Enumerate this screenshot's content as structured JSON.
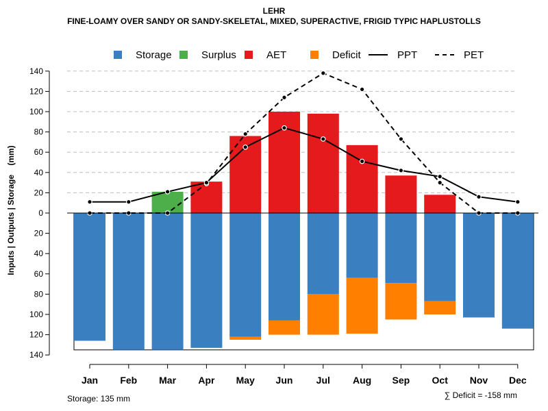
{
  "header": {
    "title": "LEHR",
    "subtitle": "FINE-LOAMY OVER SANDY OR SANDY-SKELETAL, MIXED, SUPERACTIVE, FRIGID TYPIC HAPLUSTOLLS"
  },
  "legend": {
    "storage": "Storage",
    "surplus": "Surplus",
    "aet": "AET",
    "deficit": "Deficit",
    "ppt": "PPT",
    "pet": "PET"
  },
  "colors": {
    "storage": "#3a7fbf",
    "surplus": "#4daf4a",
    "aet": "#e41a1c",
    "deficit": "#ff7f00",
    "ppt": "#000000",
    "pet": "#000000"
  },
  "footer": {
    "storage_text": "Storage: 135 mm",
    "deficit_text": "∑ Deficit = -158 mm"
  },
  "chart_data": {
    "type": "bar",
    "title": "LEHR",
    "ylabel": "Inputs | Outputs | Storage    (mm)",
    "xlabel": "",
    "ylim": [
      -140,
      140
    ],
    "yticks": [
      140,
      120,
      100,
      80,
      60,
      40,
      20,
      0,
      -20,
      -40,
      -60,
      -80,
      -100,
      -120,
      -140
    ],
    "ytick_labels": [
      "140",
      "120",
      "100",
      "80",
      "60",
      "40",
      "20",
      "0",
      "20",
      "40",
      "60",
      "80",
      "100",
      "120",
      "140"
    ],
    "categories": [
      "Jan",
      "Feb",
      "Mar",
      "Apr",
      "May",
      "Jun",
      "Jul",
      "Aug",
      "Sep",
      "Oct",
      "Nov",
      "Dec"
    ],
    "grid": true,
    "storage_capacity": 135,
    "series": [
      {
        "name": "Storage",
        "values": [
          -126,
          -135,
          -135,
          -133,
          -122,
          -106,
          -80,
          -64,
          -69,
          -87,
          -103,
          -114
        ]
      },
      {
        "name": "Surplus",
        "values": [
          0,
          0,
          21,
          0,
          0,
          0,
          0,
          0,
          0,
          0,
          0,
          0
        ]
      },
      {
        "name": "AET",
        "values": [
          0,
          0,
          0,
          31,
          76,
          100,
          98,
          67,
          37,
          18,
          0,
          0
        ]
      },
      {
        "name": "Deficit",
        "values": [
          0,
          0,
          0,
          0,
          -3,
          -14,
          -40,
          -55,
          -36,
          -13,
          0,
          0
        ]
      },
      {
        "name": "PPT",
        "values": [
          11,
          11,
          21,
          30,
          65,
          84,
          73,
          51,
          42,
          36,
          16,
          11
        ]
      },
      {
        "name": "PET",
        "values": [
          0,
          0,
          0,
          29,
          78,
          114,
          138,
          122,
          73,
          30,
          0,
          0
        ]
      }
    ]
  }
}
